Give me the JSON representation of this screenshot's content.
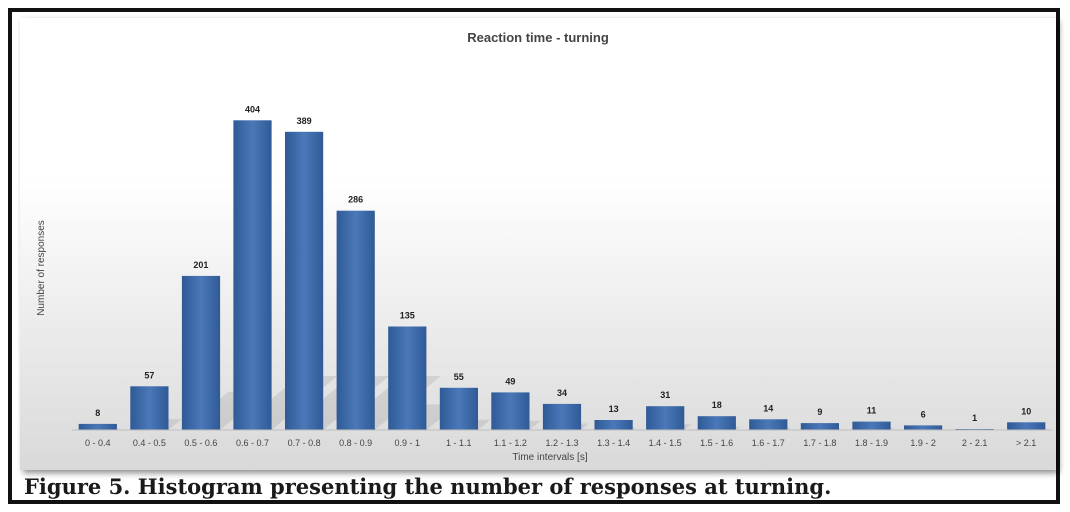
{
  "caption": "Figure 5. Histogram presenting the number of responses at turning.",
  "colors": {
    "bar": "#4a78b8",
    "bar_dark": "#2f5a96",
    "background_top": "#ffffff",
    "background_bottom": "#d9d9d9"
  },
  "chart_data": {
    "type": "bar",
    "title": "Reaction time - turning",
    "xlabel": "Time intervals [s]",
    "ylabel": "Number of responses",
    "categories": [
      "0 - 0.4",
      "0.4 - 0.5",
      "0.5 - 0.6",
      "0.6 - 0.7",
      "0.7 - 0.8",
      "0.8 - 0.9",
      "0.9 - 1",
      "1 - 1.1",
      "1.1 - 1.2",
      "1.2 - 1.3",
      "1.3 - 1.4",
      "1.4 - 1.5",
      "1.5 - 1.6",
      "1.6 - 1.7",
      "1.7 - 1.8",
      "1.8 - 1.9",
      "1.9 - 2",
      "2 - 2.1",
      "> 2.1"
    ],
    "values": [
      8,
      57,
      201,
      404,
      389,
      286,
      135,
      55,
      49,
      34,
      13,
      31,
      18,
      14,
      9,
      11,
      6,
      1,
      10
    ],
    "ylim": [
      0,
      420
    ],
    "grid": false,
    "legend": "none",
    "data_labels": true
  }
}
